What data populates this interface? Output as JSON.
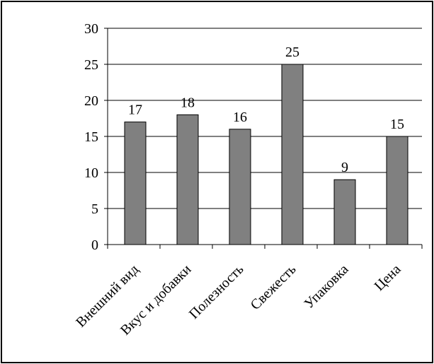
{
  "chart_data": {
    "type": "bar",
    "categories": [
      "Внешний вид",
      "Вкус и добавки",
      "Полезность",
      "Свежесть",
      "Упаковка",
      "Цена"
    ],
    "values": [
      17,
      18,
      16,
      25,
      9,
      15
    ],
    "ylim": [
      0,
      30
    ],
    "yticks": [
      0,
      5,
      10,
      15,
      20,
      25,
      30
    ],
    "grid": true,
    "legend": "none",
    "bar_color": "#808080",
    "title": "",
    "xlabel": "",
    "ylabel": ""
  }
}
